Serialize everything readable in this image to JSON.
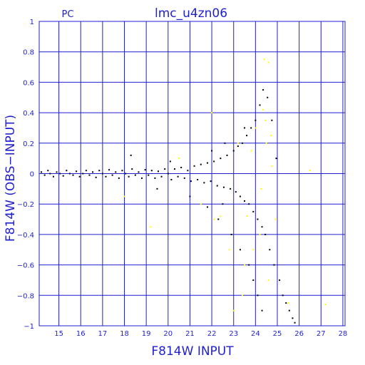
{
  "chart_data": {
    "type": "scatter",
    "title": "lmc_u4zn06",
    "subtitle": "PC",
    "xlabel": "F814W INPUT",
    "ylabel": "F814W (OBS−INPUT)",
    "xlim": [
      14.1,
      28.1
    ],
    "ylim": [
      -1,
      1
    ],
    "x_ticks": [
      "15",
      "16",
      "17",
      "18",
      "19",
      "20",
      "21",
      "22",
      "23",
      "24",
      "25",
      "26",
      "27",
      "28"
    ],
    "y_ticks": [
      "1",
      "0.8",
      "0.6",
      "0.4",
      "0.2",
      "0",
      "−0.2",
      "−0.4",
      "−0.6",
      "−0.8",
      "−1"
    ],
    "grid": true,
    "colors": {
      "axes": "#1f1fcf",
      "series_main": "#000000",
      "series_highlight": "#ffff00"
    },
    "series": [
      {
        "color": "#000000",
        "points": [
          [
            14.2,
            0.01
          ],
          [
            14.35,
            -0.01
          ],
          [
            14.5,
            0.02
          ],
          [
            14.6,
            0.0
          ],
          [
            14.75,
            -0.02
          ],
          [
            14.9,
            0.01
          ],
          [
            15.05,
            0.0
          ],
          [
            15.2,
            -0.015
          ],
          [
            15.35,
            0.02
          ],
          [
            15.5,
            0.0
          ],
          [
            15.65,
            -0.01
          ],
          [
            15.8,
            0.015
          ],
          [
            15.95,
            -0.02
          ],
          [
            16.1,
            0.0
          ],
          [
            16.25,
            0.02
          ],
          [
            16.4,
            -0.01
          ],
          [
            16.55,
            0.01
          ],
          [
            16.7,
            -0.025
          ],
          [
            16.85,
            0.02
          ],
          [
            17.0,
            0.0
          ],
          [
            17.15,
            -0.02
          ],
          [
            17.3,
            0.025
          ],
          [
            17.45,
            -0.01
          ],
          [
            17.6,
            0.01
          ],
          [
            17.75,
            -0.03
          ],
          [
            17.9,
            0.02
          ],
          [
            18.05,
            0.0
          ],
          [
            18.2,
            -0.02
          ],
          [
            18.35,
            0.03
          ],
          [
            18.5,
            -0.01
          ],
          [
            18.65,
            0.01
          ],
          [
            18.8,
            -0.03
          ],
          [
            18.95,
            0.025
          ],
          [
            19.1,
            -0.01
          ],
          [
            19.25,
            0.02
          ],
          [
            19.4,
            -0.03
          ],
          [
            19.55,
            0.015
          ],
          [
            19.7,
            -0.02
          ],
          [
            19.85,
            0.03
          ],
          [
            20.0,
            0.0
          ],
          [
            20.15,
            -0.04
          ],
          [
            20.3,
            0.03
          ],
          [
            20.45,
            -0.02
          ],
          [
            20.6,
            0.04
          ],
          [
            20.75,
            -0.03
          ],
          [
            20.9,
            0.02
          ],
          [
            21.05,
            -0.05
          ],
          [
            21.2,
            0.05
          ],
          [
            21.35,
            -0.04
          ],
          [
            21.5,
            0.06
          ],
          [
            21.65,
            -0.06
          ],
          [
            21.8,
            0.07
          ],
          [
            21.95,
            -0.05
          ],
          [
            22.1,
            0.08
          ],
          [
            22.25,
            -0.08
          ],
          [
            22.4,
            0.1
          ],
          [
            22.55,
            -0.09
          ],
          [
            22.7,
            0.12
          ],
          [
            22.85,
            -0.1
          ],
          [
            23.0,
            0.15
          ],
          [
            23.1,
            -0.12
          ],
          [
            23.2,
            0.18
          ],
          [
            23.3,
            -0.15
          ],
          [
            23.4,
            0.2
          ],
          [
            23.5,
            -0.18
          ],
          [
            23.6,
            0.25
          ],
          [
            23.7,
            -0.2
          ],
          [
            23.8,
            0.3
          ],
          [
            23.9,
            -0.25
          ],
          [
            24.0,
            0.35
          ],
          [
            24.1,
            -0.3
          ],
          [
            24.2,
            0.45
          ],
          [
            24.3,
            -0.35
          ],
          [
            24.35,
            0.55
          ],
          [
            24.45,
            -0.4
          ],
          [
            24.55,
            0.5
          ],
          [
            24.65,
            -0.5
          ],
          [
            24.75,
            0.35
          ],
          [
            24.85,
            -0.6
          ],
          [
            24.95,
            0.1
          ],
          [
            25.1,
            -0.7
          ],
          [
            25.25,
            -0.8
          ],
          [
            25.4,
            -0.85
          ],
          [
            25.55,
            -0.9
          ],
          [
            25.7,
            -0.95
          ],
          [
            25.8,
            -0.98
          ],
          [
            18.3,
            0.12
          ],
          [
            19.5,
            -0.1
          ],
          [
            20.1,
            0.08
          ],
          [
            21.0,
            -0.15
          ],
          [
            21.8,
            -0.22
          ],
          [
            22.3,
            -0.3
          ],
          [
            22.6,
            0.2
          ],
          [
            22.9,
            -0.4
          ],
          [
            23.3,
            -0.5
          ],
          [
            23.7,
            -0.6
          ],
          [
            23.9,
            -0.7
          ],
          [
            24.1,
            -0.8
          ],
          [
            24.3,
            -0.9
          ],
          [
            22.0,
            0.15
          ],
          [
            22.5,
            -0.2
          ],
          [
            23.5,
            0.3
          ]
        ]
      },
      {
        "color": "#ffff00",
        "points": [
          [
            18.0,
            -0.15
          ],
          [
            19.2,
            -0.35
          ],
          [
            20.5,
            0.1
          ],
          [
            21.5,
            -0.2
          ],
          [
            22.1,
            -0.3
          ],
          [
            22.8,
            -0.5
          ],
          [
            23.2,
            0.2
          ],
          [
            23.5,
            -0.6
          ],
          [
            23.8,
            0.15
          ],
          [
            24.0,
            0.3
          ],
          [
            24.2,
            -0.4
          ],
          [
            24.35,
            0.42
          ],
          [
            24.5,
            0.2
          ],
          [
            24.6,
            -0.7
          ],
          [
            24.75,
            0.05
          ],
          [
            24.9,
            -0.3
          ],
          [
            24.4,
            0.75
          ],
          [
            24.6,
            0.73
          ],
          [
            23.0,
            -0.9
          ],
          [
            23.4,
            -0.8
          ],
          [
            25.5,
            -0.85
          ],
          [
            27.2,
            -0.86
          ],
          [
            26.5,
            0.02
          ],
          [
            22.0,
            0.4
          ],
          [
            22.4,
            -0.28
          ],
          [
            23.6,
            -0.28
          ],
          [
            24.25,
            -0.1
          ],
          [
            23.9,
            -0.5
          ],
          [
            24.45,
            0.35
          ],
          [
            24.7,
            0.25
          ]
        ]
      }
    ]
  }
}
